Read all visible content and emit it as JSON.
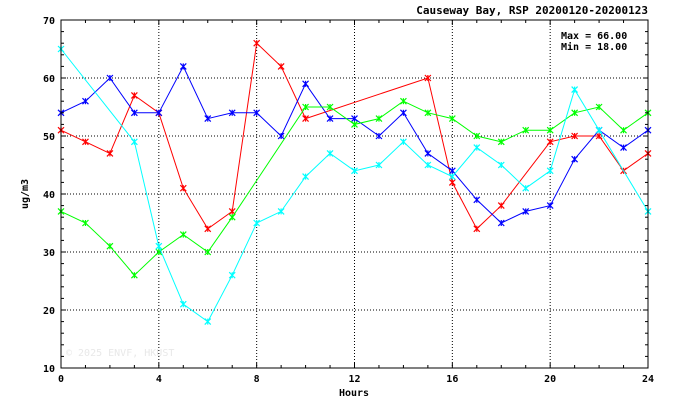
{
  "chart_data": {
    "type": "line",
    "title": "Causeway Bay, RSP 20200120-20200123",
    "stats": {
      "max": "Max = 66.00",
      "min": "Min = 18.00"
    },
    "xlabel": "Hours",
    "ylabel": "ug/m3",
    "xlim": [
      0,
      24
    ],
    "ylim": [
      10,
      70
    ],
    "xticks": [
      0,
      4,
      8,
      12,
      16,
      20,
      24
    ],
    "yticks": [
      10,
      20,
      30,
      40,
      50,
      60,
      70
    ],
    "grid": true,
    "watermark": "© 2025 ENVF, HKUST",
    "x": [
      0,
      1,
      2,
      3,
      4,
      5,
      6,
      7,
      8,
      9,
      10,
      11,
      12,
      13,
      14,
      15,
      16,
      17,
      18,
      19,
      20,
      21,
      22,
      23,
      24
    ],
    "series": [
      {
        "color": "#ff0000",
        "values": [
          51,
          49,
          47,
          57,
          54,
          41,
          34,
          37,
          66,
          62,
          53,
          null,
          null,
          null,
          null,
          60,
          42,
          34,
          38,
          null,
          49,
          50,
          50,
          44,
          47
        ]
      },
      {
        "color": "#0000ff",
        "values": [
          54,
          56,
          60,
          54,
          54,
          62,
          53,
          54,
          54,
          50,
          59,
          53,
          53,
          50,
          54,
          47,
          44,
          39,
          35,
          37,
          38,
          46,
          51,
          48,
          51
        ]
      },
      {
        "color": "#00ff00",
        "values": [
          37,
          35,
          31,
          26,
          30,
          33,
          30,
          36,
          null,
          null,
          55,
          55,
          52,
          53,
          56,
          54,
          53,
          50,
          49,
          51,
          51,
          54,
          55,
          51,
          54
        ]
      },
      {
        "color": "#00ffff",
        "values": [
          65,
          null,
          null,
          49,
          31,
          21,
          18,
          26,
          35,
          37,
          43,
          47,
          44,
          45,
          49,
          45,
          43,
          48,
          45,
          41,
          44,
          58,
          51,
          null,
          37
        ]
      }
    ]
  }
}
